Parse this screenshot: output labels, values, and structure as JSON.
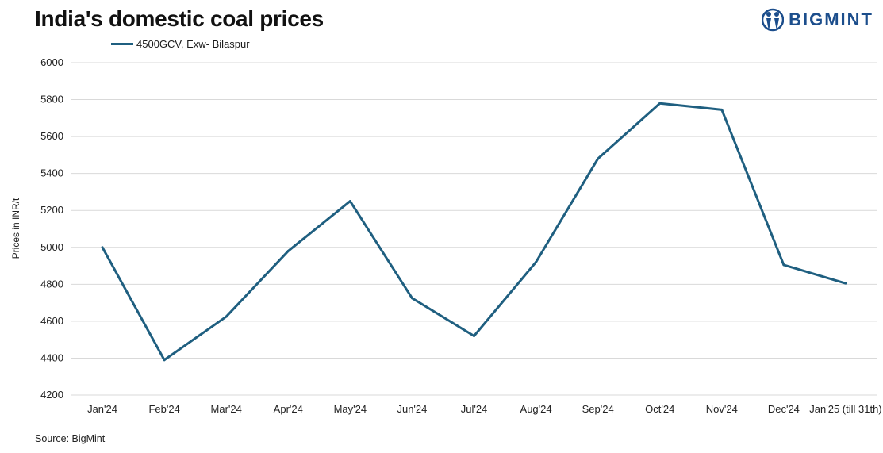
{
  "header": {
    "title": "India's domestic coal prices",
    "logo_text": "BIGMINT",
    "logo_icon": "bigmint-logo-icon",
    "brand_color": "#1c4e8c"
  },
  "footer": {
    "source": "Source: BigMint"
  },
  "chart_data": {
    "type": "line",
    "title": "India's domestic coal prices",
    "xlabel": "",
    "ylabel": "Prices in INR/t",
    "ylim": [
      4200,
      6000
    ],
    "yticks": [
      4200,
      4400,
      4600,
      4800,
      5000,
      5200,
      5400,
      5600,
      5800,
      6000
    ],
    "grid": true,
    "legend_position": "top-left",
    "categories": [
      "Jan'24",
      "Feb'24",
      "Mar'24",
      "Apr'24",
      "May'24",
      "Jun'24",
      "Jul'24",
      "Aug'24",
      "Sep'24",
      "Oct'24",
      "Nov'24",
      "Dec'24",
      "Jan'25 (till 31th)"
    ],
    "series": [
      {
        "name": "4500GCV, Exw- Bilaspur",
        "color": "#1f5f80",
        "values": [
          5000,
          4390,
          4625,
          4980,
          5250,
          4725,
          4520,
          4920,
          5480,
          5780,
          5745,
          4905,
          4805
        ]
      }
    ]
  }
}
